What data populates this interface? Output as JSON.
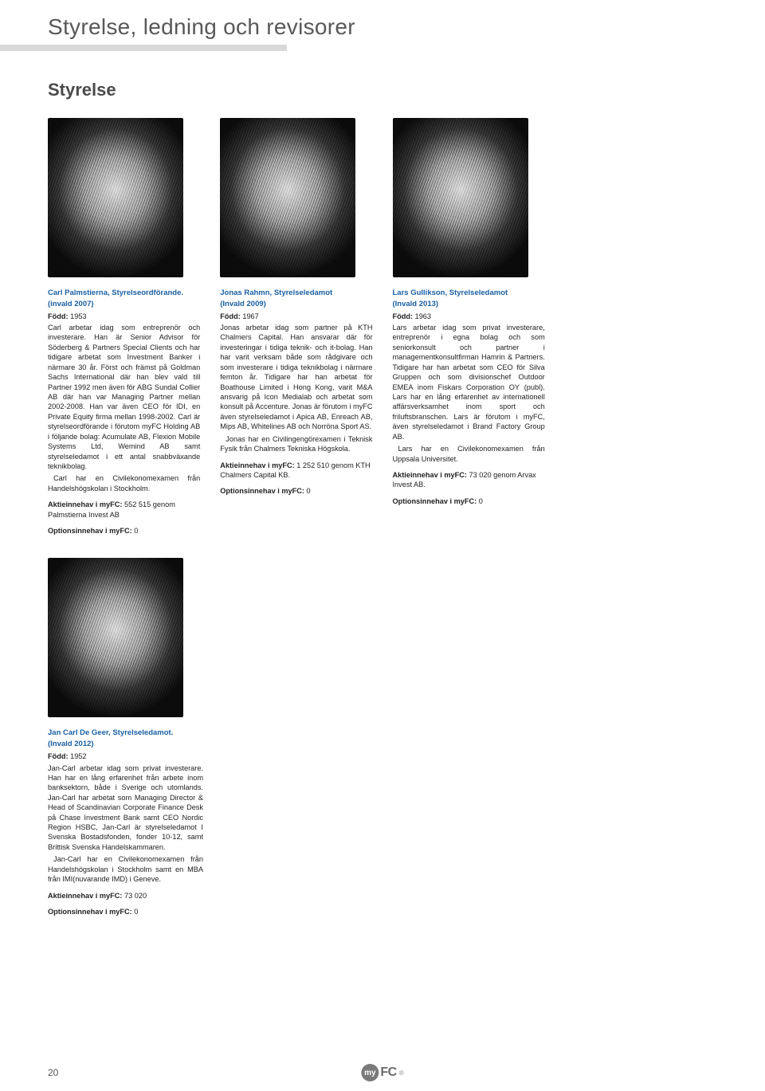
{
  "colors": {
    "title_text": "#585858",
    "rule_bg": "#d8d8d8",
    "accent": "#1a5fa3",
    "body_text": "#222222",
    "page_number": "#555555",
    "logo_circle": "#7a7a7a",
    "logo_fc": "#6a6a6a"
  },
  "typography": {
    "title_size_pt": 21,
    "section_size_pt": 17,
    "body_size_pt": 7,
    "name_weight": "bold"
  },
  "page_title": "Styrelse, ledning och revisorer",
  "section_title": "Styrelse",
  "page_number": "20",
  "logo": {
    "my": "my",
    "fc": "FC",
    "reg": "®"
  },
  "labels": {
    "born": "Född:",
    "shareholding": "Aktieinnehav i myFC:",
    "options": "Optionsinnehav i myFC:"
  },
  "members": [
    {
      "name": "Carl Palmstierna, Styrelseordförande.",
      "elected": "(invald 2007)",
      "born": "1953",
      "bio": [
        "Carl arbetar idag som entreprenör och investerare. Han är Senior Advisor för Söderberg & Partners Special Clients och har tidigare arbetat som Investment Banker i närmare 30 år. Först och främst på Goldman Sachs International där han blev vald till Partner 1992 men även för ABG Sundal Collier AB där han var Managing Partner mellan 2002-2008. Han var även CEO för IDI, en Private Equity firma mellan 1998-2002. Carl är styrelseordförande i förutom myFC Holding AB i följande bolag: Acumulate AB, Flexion Mobile Systems Ltd, Wemind AB samt styrelseledamot i ett antal snabbväxande teknikbolag.",
        "Carl har en Civilekonomexamen från Handelshögskolan i Stockholm."
      ],
      "shares": "552 515 genom Palmstierna Invest AB",
      "options": "0"
    },
    {
      "name": "Jonas Rahmn, Styrelseledamot",
      "elected": "(Invald 2009)",
      "born": "1967",
      "bio": [
        "Jonas arbetar idag som partner på KTH Chalmers Capital. Han ansvarar där för investeringar i tidiga teknik- och it-bolag. Han har varit verksam både som rådgivare och som investerare i tidiga teknikbolag i närmare femton år. Tidigare har han arbetat för Boathouse Limited i Hong Kong, varit M&A ansvarig på Icon Medialab och arbetat som konsult på Accenture. Jonas är förutom i myFC även styrelseledamot i Apica AB, Enreach AB, Mips AB, Whitelines AB och Norröna Sport AS.",
        "Jonas har en Civilingengörexamen i Teknisk Fysik från Chalmers Tekniska Högskola."
      ],
      "shares": "1 252 510 genom KTH Chalmers Capital KB.",
      "options": "0"
    },
    {
      "name": "Lars Gullikson, Styrelseledamot",
      "elected": "(Invald 2013)",
      "born": "1963",
      "bio": [
        "Lars arbetar idag som privat investerare, entreprenör i egna bolag och som seniorkonsult och partner i managementkonsultfirman Hamrin & Partners. Tidigare har han arbetat som CEO för Silva Gruppen och som divisionschef Outdoor EMEA inom Fiskars Corporation OY (publ). Lars har en lång erfarenhet av internationell affärsverksamhet inom sport och friluftsbranschen. Lars är förutom i myFC, även styrelseledamot i Brand Factory Group AB.",
        "Lars har en Civilekonomexamen från Uppsala Universitet."
      ],
      "shares": "73 020 genom Arvax Invest AB.",
      "options": "0"
    },
    {
      "name": "Jan Carl De Geer, Styrelseledamot.",
      "elected": "(Invald 2012)",
      "born": "1952",
      "bio": [
        "Jan-Carl arbetar idag som privat investerare. Han har en lång erfarenhet från arbete inom banksektorn, både i Sverige och utomlands. Jan-Carl har arbetat som Managing Director & Head of Scandinavian Corporate Finance Desk på Chase Investment Bank samt CEO Nordic Region HSBC, Jan-Carl är styrelseledamot I Svenska Bostadsfonden, fonder 10-12, samt Brittisk Svenska Handelskammaren.",
        "Jan-Carl har en Civilekonomexamen från Handelshögskolan i Stockholm samt en MBA från IMI(nuvarande IMD) i Geneve."
      ],
      "shares": "73 020",
      "options": "0"
    }
  ]
}
